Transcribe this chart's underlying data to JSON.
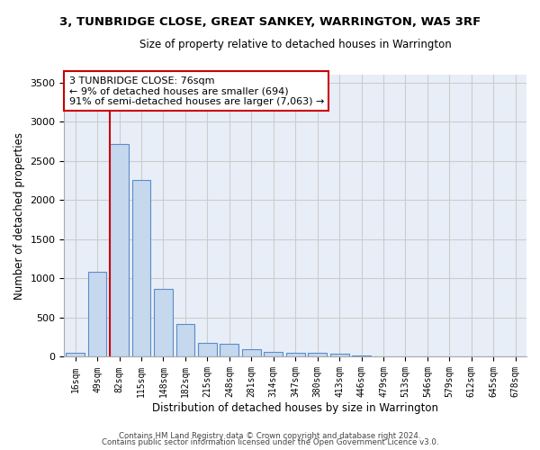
{
  "title1": "3, TUNBRIDGE CLOSE, GREAT SANKEY, WARRINGTON, WA5 3RF",
  "title2": "Size of property relative to detached houses in Warrington",
  "xlabel": "Distribution of detached houses by size in Warrington",
  "ylabel": "Number of detached properties",
  "categories": [
    "16sqm",
    "49sqm",
    "82sqm",
    "115sqm",
    "148sqm",
    "182sqm",
    "215sqm",
    "248sqm",
    "281sqm",
    "314sqm",
    "347sqm",
    "380sqm",
    "413sqm",
    "446sqm",
    "479sqm",
    "513sqm",
    "546sqm",
    "579sqm",
    "612sqm",
    "645sqm",
    "678sqm"
  ],
  "values": [
    55,
    1090,
    2720,
    2260,
    870,
    415,
    175,
    165,
    95,
    65,
    50,
    50,
    35,
    15,
    10,
    5,
    5,
    2,
    2,
    1,
    1
  ],
  "bar_color": "#c5d8ee",
  "bar_edge_color": "#5b8cc8",
  "grid_color": "#cccccc",
  "bg_color": "#e8eef8",
  "annotation_text": "3 TUNBRIDGE CLOSE: 76sqm\n← 9% of detached houses are smaller (694)\n91% of semi-detached houses are larger (7,063) →",
  "vline_x_index": 2,
  "vline_color": "#cc0000",
  "box_color": "#cc0000",
  "footer1": "Contains HM Land Registry data © Crown copyright and database right 2024.",
  "footer2": "Contains public sector information licensed under the Open Government Licence v3.0.",
  "ylim": [
    0,
    3600
  ],
  "yticks": [
    0,
    500,
    1000,
    1500,
    2000,
    2500,
    3000,
    3500
  ]
}
